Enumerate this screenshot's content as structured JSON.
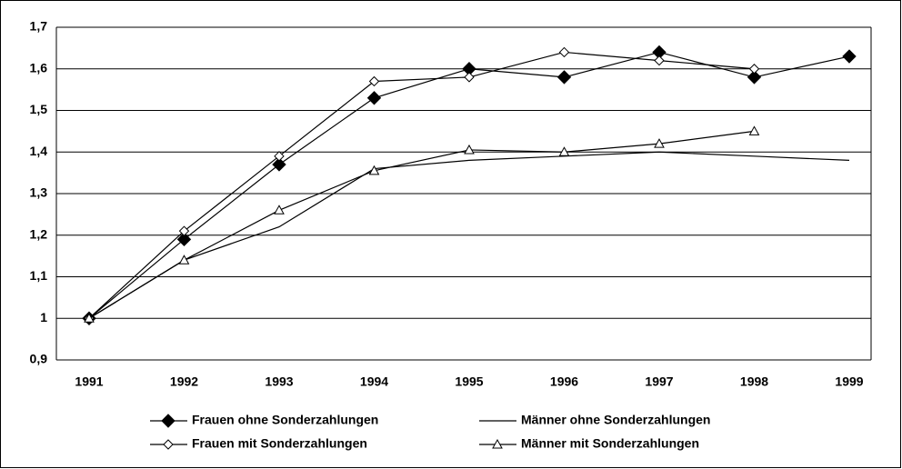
{
  "chart_data": {
    "type": "line",
    "categories": [
      "1991",
      "1992",
      "1993",
      "1994",
      "1995",
      "1996",
      "1997",
      "1998",
      "1999"
    ],
    "series": [
      {
        "name": "Frauen ohne Sonderzahlungen",
        "color": "#000000",
        "marker": "diamond-filled",
        "values": [
          1.0,
          1.19,
          1.37,
          1.53,
          1.6,
          1.58,
          1.64,
          1.58,
          1.63
        ]
      },
      {
        "name": "Männer ohne Sonderzahlungen",
        "color": "#000000",
        "marker": "none",
        "values": [
          1.0,
          1.14,
          1.22,
          1.36,
          1.38,
          1.39,
          1.4,
          1.39,
          1.38
        ]
      },
      {
        "name": "Frauen mit Sonderzahlungen",
        "color": "#000000",
        "marker": "diamond-open",
        "values": [
          1.0,
          1.21,
          1.39,
          1.57,
          1.58,
          1.64,
          1.62,
          1.6,
          null
        ]
      },
      {
        "name": "Männer mit Sonderzahlungen",
        "color": "#000000",
        "marker": "triangle-open",
        "values": [
          1.0,
          1.14,
          1.26,
          1.355,
          1.405,
          1.4,
          1.42,
          1.45,
          null
        ]
      }
    ],
    "ylim": [
      0.9,
      1.7
    ],
    "yticks": [
      {
        "value": 0.9,
        "label": "0,9"
      },
      1,
      {
        "value": 1.1,
        "label": "1,1"
      },
      {
        "value": 1.2,
        "label": "1,2"
      },
      {
        "value": 1.3,
        "label": "1,3"
      },
      {
        "value": 1.4,
        "label": "1,4"
      },
      {
        "value": 1.5,
        "label": "1,5"
      },
      {
        "value": 1.6,
        "label": "1,6"
      },
      {
        "value": 1.7,
        "label": "1,7"
      }
    ],
    "grid": true
  }
}
